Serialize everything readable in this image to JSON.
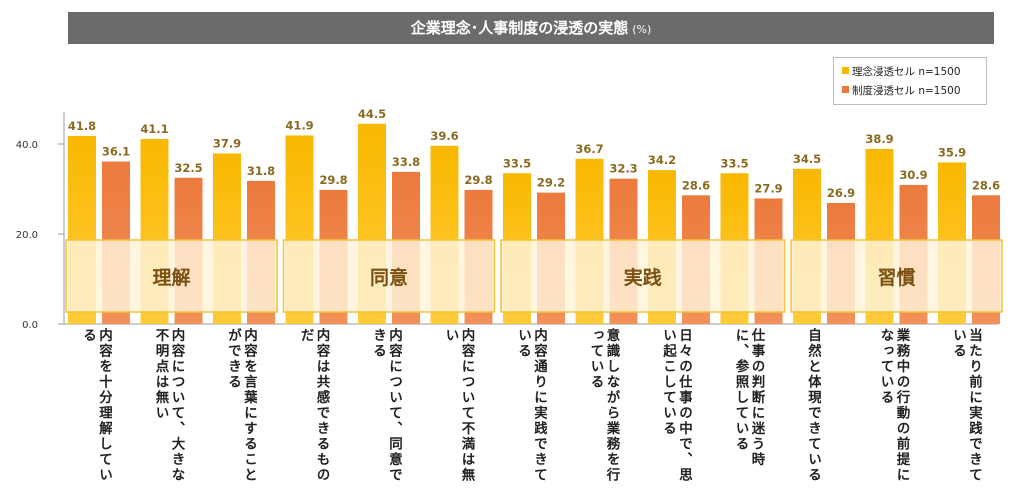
{
  "title": "企業理念･人事制度の浸透の実態",
  "title_unit": "(%)",
  "colors": {
    "series1": "#f9b800",
    "series2": "#ec7a3d",
    "group_box_border": "#f3c23a",
    "axis": "#9e9e9e"
  },
  "chart_data": {
    "type": "bar",
    "categories": [
      "内容を十分理解している",
      "内容について、大きな不明点は無い",
      "内容を言葉にすることができる",
      "内容は共感できるものだ",
      "内容について、同意できる",
      "内容について不満は無い",
      "内容通りに実践できている",
      "意識しながら業務を行っている",
      "日々の仕事の中で、思い起こしている",
      "仕事の判断に迷う時に、参照している",
      "自然と体現できている",
      "業務中の行動の前提になっている",
      "当たり前に実践できている"
    ],
    "series": [
      {
        "name": "理念浸透セル n=1500",
        "values": [
          41.8,
          41.1,
          37.9,
          41.9,
          44.5,
          39.6,
          33.5,
          36.7,
          34.2,
          33.5,
          34.5,
          38.9,
          35.9
        ]
      },
      {
        "name": "制度浸透セル n=1500",
        "values": [
          36.1,
          32.5,
          31.8,
          29.8,
          33.8,
          29.8,
          29.2,
          32.3,
          28.6,
          27.9,
          26.9,
          30.9,
          28.6
        ]
      }
    ],
    "groups": [
      {
        "label": "理解",
        "start": 0,
        "end": 2
      },
      {
        "label": "同意",
        "start": 3,
        "end": 5
      },
      {
        "label": "実践",
        "start": 6,
        "end": 9
      },
      {
        "label": "習慣",
        "start": 10,
        "end": 12
      }
    ],
    "yticks": [
      "0.0",
      "20.0",
      "40.0"
    ],
    "ylim": [
      0,
      50
    ],
    "legend_position": "top-right"
  }
}
